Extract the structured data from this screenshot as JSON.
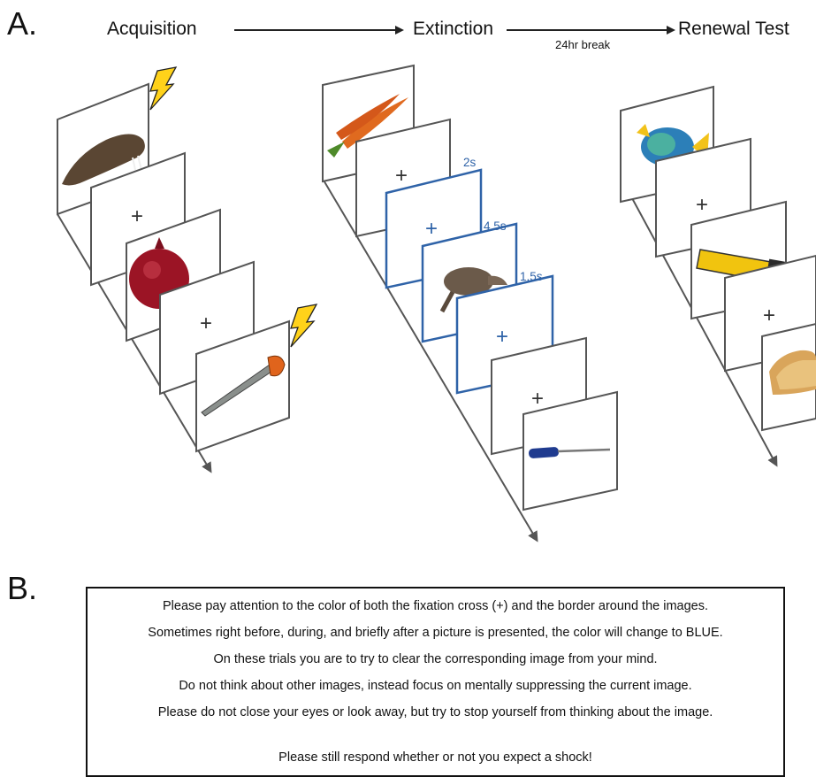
{
  "panel_a": {
    "label": "A.",
    "phases": [
      "Acquisition",
      "Extinction",
      "Renewal Test"
    ],
    "break_label": "24hr break",
    "timings": [
      "2s",
      "4.5s",
      "1.5s"
    ],
    "fixation_symbol": "+",
    "icons": [
      "walrus-image",
      "pomegranate-image",
      "saw-image",
      "carrot-image",
      "aardvark-image",
      "screwdriver-image",
      "fish-image",
      "flashlight-image",
      "toast-image",
      "lightning-bolt-icon"
    ],
    "colors": {
      "suppress_blue": "#2f63a8",
      "frame_gray": "#555555",
      "shock_yellow": "#ffd21a"
    }
  },
  "panel_b": {
    "label": "B.",
    "instructions": [
      "Please pay attention to the color of both the fixation cross (+) and the border around the images.",
      "Sometimes right before, during, and briefly after a picture is presented, the color will change to BLUE.",
      "On these trials you are to try to clear the corresponding image from your mind.",
      "Do not think about other images, instead focus on mentally suppressing the current image.",
      "Please do not close your eyes or look away, but try to stop yourself from thinking about the image.",
      "Please still respond whether or not you expect a shock!"
    ]
  }
}
